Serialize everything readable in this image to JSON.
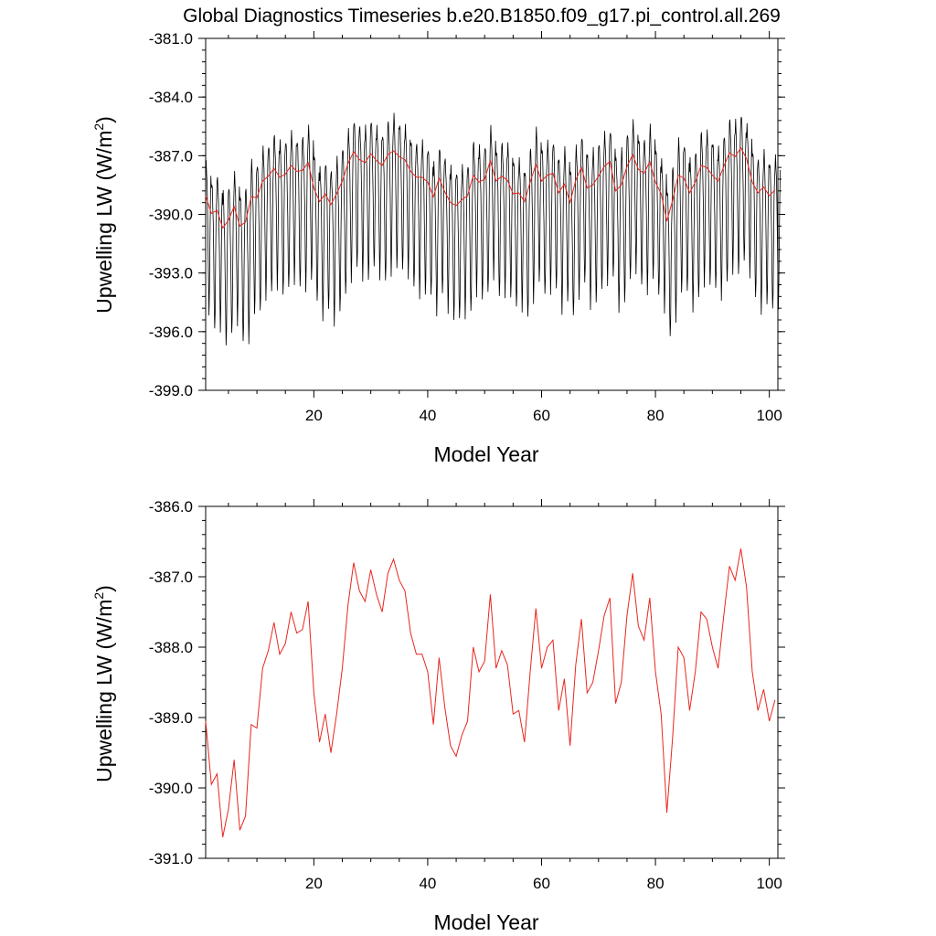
{
  "title": "Global Diagnostics Timeseries b.e20.B1850.f09_g17.pi_control.all.269",
  "chart_data": [
    {
      "type": "line",
      "xlabel": "Model Year",
      "ylabel": "Upwelling LW (W/m",
      "ylabel_sup": "2",
      "ylabel_close": ")",
      "xlim": [
        1,
        101.5
      ],
      "ylim": [
        -399.0,
        -381.0
      ],
      "yticks": [
        "-381.0",
        "-384.0",
        "-387.0",
        "-390.0",
        "-393.0",
        "-396.0",
        "-399.0"
      ],
      "ytick_values": [
        -381,
        -384,
        -387,
        -390,
        -393,
        -396,
        -399
      ],
      "xticks": [
        "20",
        "40",
        "60",
        "80",
        "100"
      ],
      "xtick_values": [
        20,
        40,
        60,
        80,
        100
      ],
      "monthly_series": {
        "name": "",
        "color": "#000000",
        "description_values": "monthly values oscillating seasonally; annual max ≈ annual mean + 1.7, annual min ≈ annual mean - 6.0",
        "seasonal_offsets": [
          1.3,
          1.7,
          1.2,
          0.4,
          -0.7,
          -2.3,
          -4.4,
          -6.0,
          -5.0,
          -2.4,
          -0.2,
          0.9
        ]
      },
      "annual_series": {
        "name": "",
        "color": "#e8261f"
      }
    },
    {
      "type": "line",
      "xlabel": "Model Year",
      "ylabel": "Upwelling LW (W/m",
      "ylabel_sup": "2",
      "ylabel_close": ")",
      "xlim": [
        1,
        101.5
      ],
      "ylim": [
        -391.0,
        -386.0
      ],
      "yticks": [
        "-386.0",
        "-387.0",
        "-388.0",
        "-389.0",
        "-390.0",
        "-391.0"
      ],
      "ytick_values": [
        -386,
        -387,
        -388,
        -389,
        -390,
        -391
      ],
      "xticks": [
        "20",
        "40",
        "60",
        "80",
        "100"
      ],
      "xtick_values": [
        20,
        40,
        60,
        80,
        100
      ],
      "series": [
        {
          "name": "",
          "color": "#e8261f",
          "x": [
            1,
            2,
            3,
            4,
            5,
            6,
            7,
            8,
            9,
            10,
            11,
            12,
            13,
            14,
            15,
            16,
            17,
            18,
            19,
            20,
            21,
            22,
            23,
            24,
            25,
            26,
            27,
            28,
            29,
            30,
            31,
            32,
            33,
            34,
            35,
            36,
            37,
            38,
            39,
            40,
            41,
            42,
            43,
            44,
            45,
            46,
            47,
            48,
            49,
            50,
            51,
            52,
            53,
            54,
            55,
            56,
            57,
            58,
            59,
            60,
            61,
            62,
            63,
            64,
            65,
            66,
            67,
            68,
            69,
            70,
            71,
            72,
            73,
            74,
            75,
            76,
            77,
            78,
            79,
            80,
            81,
            82,
            83,
            84,
            85,
            86,
            87,
            88,
            89,
            90,
            91,
            92,
            93,
            94,
            95,
            96,
            97,
            98,
            99,
            100,
            101
          ],
          "values": [
            -389.05,
            -389.95,
            -389.8,
            -390.7,
            -390.3,
            -389.6,
            -390.6,
            -390.4,
            -389.1,
            -389.15,
            -388.3,
            -388.05,
            -387.65,
            -388.1,
            -387.95,
            -387.5,
            -387.8,
            -387.75,
            -387.35,
            -388.65,
            -389.35,
            -388.95,
            -389.5,
            -388.95,
            -388.3,
            -387.4,
            -386.8,
            -387.2,
            -387.35,
            -386.9,
            -387.25,
            -387.5,
            -386.95,
            -386.75,
            -387.05,
            -387.2,
            -387.8,
            -388.1,
            -388.1,
            -388.35,
            -389.1,
            -388.15,
            -388.85,
            -389.4,
            -389.55,
            -389.25,
            -389.05,
            -388.0,
            -388.35,
            -388.2,
            -387.25,
            -388.3,
            -388.05,
            -388.25,
            -388.95,
            -388.9,
            -389.35,
            -388.35,
            -387.45,
            -388.3,
            -388.0,
            -387.9,
            -388.9,
            -388.45,
            -389.4,
            -388.25,
            -387.6,
            -388.65,
            -388.5,
            -388.05,
            -387.55,
            -387.3,
            -388.8,
            -388.5,
            -387.55,
            -386.95,
            -387.7,
            -387.9,
            -387.3,
            -388.35,
            -388.95,
            -390.35,
            -389.3,
            -388.0,
            -388.15,
            -388.9,
            -388.35,
            -387.5,
            -387.6,
            -388.0,
            -388.3,
            -387.55,
            -386.85,
            -387.05,
            -386.6,
            -387.15,
            -388.35,
            -388.9,
            -388.6,
            -389.05,
            -388.75
          ]
        }
      ]
    }
  ]
}
